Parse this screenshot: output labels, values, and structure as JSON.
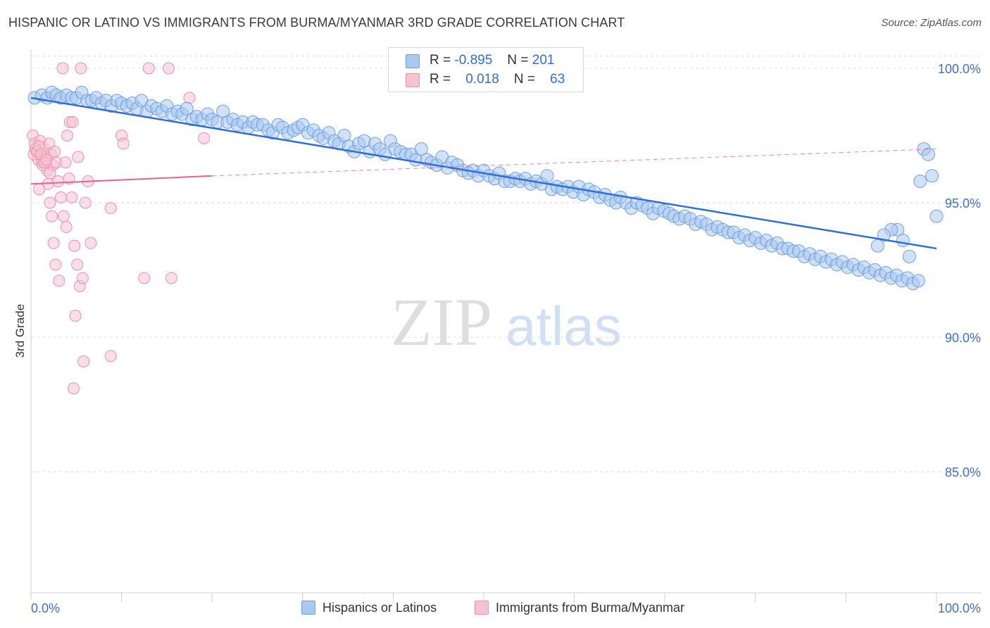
{
  "title": "HISPANIC OR LATINO VS IMMIGRANTS FROM BURMA/MYANMAR 3RD GRADE CORRELATION CHART",
  "source": "Source: ZipAtlas.com",
  "watermark": {
    "zip": "ZIP",
    "atlas": "atlas"
  },
  "colors": {
    "blue_fill": "#a9c8f2",
    "blue_stroke": "#6fa0e0",
    "blue_line": "#2d6fd6",
    "pink_fill": "#f7c3d3",
    "pink_stroke": "#ee8fae",
    "pink_line": "#e8628c",
    "axis_label": "#3d72c9",
    "grid": "#dcdcdc"
  },
  "legend_top": [
    {
      "r_label": "R =",
      "r_value": "-0.895",
      "n_label": "N =",
      "n_value": "201"
    },
    {
      "r_label": "R =",
      "r_value": "0.018",
      "n_label": "N =",
      "n_value": "63"
    }
  ],
  "legend_bottom": [
    "Hispanics or Latinos",
    "Immigrants from Burma/Myanmar"
  ],
  "chart_data": {
    "type": "scatter",
    "title": "HISPANIC OR LATINO VS IMMIGRANTS FROM BURMA/MYANMAR 3RD GRADE CORRELATION CHART",
    "xlabel": "",
    "ylabel": "3rd Grade",
    "x_tick_labels": [
      "0.0%",
      "100.0%"
    ],
    "y_tick_labels": [
      "100.0%",
      "95.0%",
      "90.0%",
      "85.0%"
    ],
    "y_ticks": [
      100,
      95,
      90,
      85
    ],
    "xlim": [
      0,
      100
    ],
    "ylim": [
      80.3,
      100.5
    ],
    "grid": true,
    "legend_placement": "bottom",
    "series": [
      {
        "name": "Hispanics or Latinos",
        "r": -0.895,
        "n": 201,
        "trend": {
          "x": [
            0,
            100
          ],
          "y": [
            98.9,
            93.3
          ]
        },
        "points": [
          [
            0.4,
            98.9
          ],
          [
            1.2,
            99.0
          ],
          [
            1.8,
            98.9
          ],
          [
            2.3,
            99.1
          ],
          [
            2.8,
            99.0
          ],
          [
            3.3,
            98.9
          ],
          [
            3.9,
            99.0
          ],
          [
            4.5,
            98.9
          ],
          [
            5.0,
            98.9
          ],
          [
            5.6,
            99.1
          ],
          [
            6.2,
            98.8
          ],
          [
            6.7,
            98.8
          ],
          [
            7.2,
            98.9
          ],
          [
            7.8,
            98.7
          ],
          [
            8.3,
            98.8
          ],
          [
            8.9,
            98.6
          ],
          [
            9.5,
            98.8
          ],
          [
            10.0,
            98.7
          ],
          [
            10.6,
            98.6
          ],
          [
            11.2,
            98.7
          ],
          [
            11.7,
            98.5
          ],
          [
            12.2,
            98.8
          ],
          [
            12.8,
            98.4
          ],
          [
            13.3,
            98.6
          ],
          [
            13.9,
            98.5
          ],
          [
            14.5,
            98.4
          ],
          [
            15.0,
            98.6
          ],
          [
            15.6,
            98.3
          ],
          [
            16.2,
            98.4
          ],
          [
            16.7,
            98.3
          ],
          [
            17.2,
            98.5
          ],
          [
            17.8,
            98.1
          ],
          [
            18.3,
            98.2
          ],
          [
            18.9,
            98.1
          ],
          [
            19.5,
            98.3
          ],
          [
            20.0,
            98.1
          ],
          [
            20.6,
            98.0
          ],
          [
            21.2,
            98.4
          ],
          [
            21.7,
            98.0
          ],
          [
            22.3,
            98.1
          ],
          [
            22.8,
            97.9
          ],
          [
            23.4,
            98.0
          ],
          [
            24.0,
            97.8
          ],
          [
            24.5,
            98.0
          ],
          [
            25.0,
            97.9
          ],
          [
            25.6,
            97.9
          ],
          [
            26.2,
            97.7
          ],
          [
            26.7,
            97.6
          ],
          [
            27.3,
            97.9
          ],
          [
            27.8,
            97.8
          ],
          [
            28.4,
            97.6
          ],
          [
            29.0,
            97.7
          ],
          [
            29.5,
            97.8
          ],
          [
            30.0,
            97.9
          ],
          [
            30.6,
            97.6
          ],
          [
            31.2,
            97.7
          ],
          [
            31.8,
            97.5
          ],
          [
            32.3,
            97.4
          ],
          [
            32.9,
            97.6
          ],
          [
            33.5,
            97.3
          ],
          [
            34.0,
            97.2
          ],
          [
            34.6,
            97.5
          ],
          [
            35.1,
            97.1
          ],
          [
            35.7,
            96.9
          ],
          [
            36.2,
            97.2
          ],
          [
            36.8,
            97.3
          ],
          [
            37.4,
            96.9
          ],
          [
            38.0,
            97.2
          ],
          [
            38.5,
            97.0
          ],
          [
            39.1,
            96.8
          ],
          [
            39.7,
            97.3
          ],
          [
            40.2,
            97.0
          ],
          [
            40.8,
            96.9
          ],
          [
            41.4,
            96.8
          ],
          [
            42.0,
            96.8
          ],
          [
            42.5,
            96.6
          ],
          [
            43.1,
            97.0
          ],
          [
            43.7,
            96.6
          ],
          [
            44.2,
            96.5
          ],
          [
            44.8,
            96.4
          ],
          [
            45.4,
            96.7
          ],
          [
            46.0,
            96.3
          ],
          [
            46.5,
            96.5
          ],
          [
            47.1,
            96.4
          ],
          [
            47.7,
            96.2
          ],
          [
            48.3,
            96.1
          ],
          [
            48.8,
            96.2
          ],
          [
            49.4,
            96.0
          ],
          [
            50.0,
            96.2
          ],
          [
            50.6,
            96.0
          ],
          [
            51.2,
            95.9
          ],
          [
            51.7,
            96.1
          ],
          [
            52.3,
            95.8
          ],
          [
            52.9,
            95.8
          ],
          [
            53.5,
            95.9
          ],
          [
            54.0,
            95.8
          ],
          [
            54.6,
            95.9
          ],
          [
            55.2,
            95.7
          ],
          [
            55.8,
            95.8
          ],
          [
            56.4,
            95.7
          ],
          [
            57.0,
            96.0
          ],
          [
            57.5,
            95.5
          ],
          [
            58.1,
            95.6
          ],
          [
            58.7,
            95.5
          ],
          [
            59.3,
            95.6
          ],
          [
            59.9,
            95.4
          ],
          [
            60.5,
            95.6
          ],
          [
            61.0,
            95.3
          ],
          [
            61.6,
            95.5
          ],
          [
            62.2,
            95.4
          ],
          [
            62.8,
            95.2
          ],
          [
            63.4,
            95.3
          ],
          [
            64.0,
            95.1
          ],
          [
            64.6,
            95.0
          ],
          [
            65.1,
            95.2
          ],
          [
            65.7,
            95.0
          ],
          [
            66.3,
            94.8
          ],
          [
            66.9,
            95.0
          ],
          [
            67.5,
            94.9
          ],
          [
            68.1,
            94.8
          ],
          [
            68.7,
            94.6
          ],
          [
            69.3,
            94.8
          ],
          [
            69.9,
            94.7
          ],
          [
            70.5,
            94.6
          ],
          [
            71.0,
            94.5
          ],
          [
            71.6,
            94.4
          ],
          [
            72.2,
            94.5
          ],
          [
            72.8,
            94.4
          ],
          [
            73.4,
            94.2
          ],
          [
            74.0,
            94.3
          ],
          [
            74.6,
            94.2
          ],
          [
            75.2,
            94.0
          ],
          [
            75.8,
            94.1
          ],
          [
            76.4,
            94.0
          ],
          [
            77.0,
            93.9
          ],
          [
            77.6,
            93.9
          ],
          [
            78.2,
            93.7
          ],
          [
            78.8,
            93.8
          ],
          [
            79.4,
            93.6
          ],
          [
            80.0,
            93.7
          ],
          [
            80.6,
            93.5
          ],
          [
            81.2,
            93.6
          ],
          [
            81.8,
            93.4
          ],
          [
            82.4,
            93.5
          ],
          [
            83.0,
            93.3
          ],
          [
            83.6,
            93.3
          ],
          [
            84.2,
            93.2
          ],
          [
            84.8,
            93.2
          ],
          [
            85.4,
            93.0
          ],
          [
            86.0,
            93.1
          ],
          [
            86.6,
            92.9
          ],
          [
            87.2,
            93.0
          ],
          [
            87.8,
            92.8
          ],
          [
            88.4,
            92.9
          ],
          [
            89.0,
            92.7
          ],
          [
            89.6,
            92.8
          ],
          [
            90.2,
            92.6
          ],
          [
            90.8,
            92.7
          ],
          [
            91.4,
            92.5
          ],
          [
            92.0,
            92.6
          ],
          [
            92.6,
            92.4
          ],
          [
            93.2,
            92.5
          ],
          [
            93.8,
            92.3
          ],
          [
            94.4,
            92.4
          ],
          [
            95.0,
            92.2
          ],
          [
            95.6,
            92.3
          ],
          [
            96.2,
            92.1
          ],
          [
            96.8,
            92.2
          ],
          [
            97.4,
            92.0
          ],
          [
            98.0,
            92.1
          ],
          [
            98.6,
            97.0
          ],
          [
            99.1,
            96.8
          ],
          [
            99.5,
            96.0
          ],
          [
            100.0,
            94.5
          ],
          [
            98.2,
            95.8
          ],
          [
            97.0,
            93.0
          ],
          [
            96.3,
            93.6
          ],
          [
            95.7,
            94.0
          ],
          [
            95.0,
            94.0
          ],
          [
            94.2,
            93.8
          ],
          [
            93.5,
            93.4
          ]
        ]
      },
      {
        "name": "Immigrants from Burma/Myanmar",
        "r": 0.018,
        "n": 63,
        "trend": {
          "x": [
            0,
            20
          ],
          "y": [
            95.7,
            96.0
          ]
        },
        "trend_dashed": {
          "x": [
            20,
            100
          ],
          "y": [
            96.0,
            97.0
          ]
        },
        "points": [
          [
            0.2,
            97.5
          ],
          [
            0.4,
            97.2
          ],
          [
            0.6,
            96.9
          ],
          [
            0.8,
            96.6
          ],
          [
            1.0,
            97.3
          ],
          [
            1.2,
            96.5
          ],
          [
            1.4,
            97.0
          ],
          [
            1.6,
            96.7
          ],
          [
            1.8,
            96.2
          ],
          [
            2.0,
            97.2
          ],
          [
            2.2,
            96.8
          ],
          [
            2.4,
            96.4
          ],
          [
            2.6,
            96.9
          ],
          [
            2.8,
            96.5
          ],
          [
            0.3,
            96.8
          ],
          [
            0.5,
            97.0
          ],
          [
            0.7,
            96.9
          ],
          [
            0.9,
            97.1
          ],
          [
            1.1,
            96.8
          ],
          [
            1.3,
            96.4
          ],
          [
            1.5,
            96.5
          ],
          [
            1.7,
            96.6
          ],
          [
            1.9,
            95.7
          ],
          [
            2.1,
            95.0
          ],
          [
            2.3,
            94.5
          ],
          [
            2.5,
            93.5
          ],
          [
            2.7,
            92.7
          ],
          [
            3.0,
            95.8
          ],
          [
            3.3,
            95.2
          ],
          [
            3.6,
            94.5
          ],
          [
            3.9,
            94.1
          ],
          [
            4.2,
            95.9
          ],
          [
            4.5,
            95.2
          ],
          [
            4.8,
            93.4
          ],
          [
            5.1,
            92.7
          ],
          [
            5.4,
            91.9
          ],
          [
            5.7,
            92.2
          ],
          [
            6.0,
            95.0
          ],
          [
            6.3,
            95.8
          ],
          [
            6.6,
            93.5
          ],
          [
            3.1,
            92.1
          ],
          [
            4.0,
            97.5
          ],
          [
            4.3,
            98.0
          ],
          [
            4.6,
            98.0
          ],
          [
            4.9,
            90.8
          ],
          [
            5.2,
            96.7
          ],
          [
            5.8,
            89.1
          ],
          [
            3.5,
            100.0
          ],
          [
            5.5,
            100.0
          ],
          [
            10.0,
            97.5
          ],
          [
            10.2,
            97.2
          ],
          [
            13.0,
            100.0
          ],
          [
            15.2,
            100.0
          ],
          [
            17.5,
            98.9
          ],
          [
            19.1,
            97.4
          ],
          [
            12.5,
            92.2
          ],
          [
            8.8,
            89.3
          ],
          [
            4.7,
            88.1
          ],
          [
            8.8,
            94.8
          ],
          [
            15.5,
            92.2
          ],
          [
            2.1,
            96.1
          ],
          [
            3.8,
            96.5
          ],
          [
            0.9,
            95.5
          ]
        ]
      }
    ]
  }
}
